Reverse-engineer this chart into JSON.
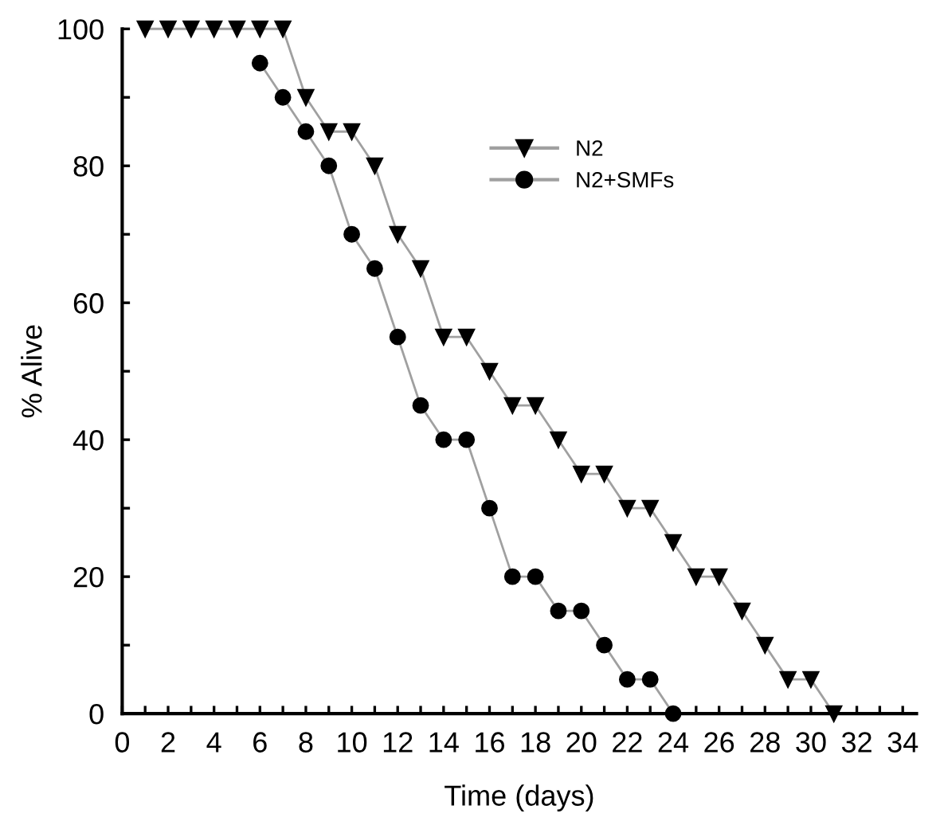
{
  "chart_data": {
    "type": "line",
    "xlabel": "Time (days)",
    "ylabel": "% Alive",
    "xlim": [
      0,
      34.6
    ],
    "ylim": [
      0,
      100
    ],
    "xticks": [
      0,
      {
        "value": 1,
        "label": null
      },
      2,
      {
        "value": 3,
        "label": null
      },
      4,
      {
        "value": 5,
        "label": null
      },
      6,
      {
        "value": 7,
        "label": null
      },
      8,
      {
        "value": 9,
        "label": null
      },
      10,
      {
        "value": 11,
        "label": null
      },
      12,
      {
        "value": 13,
        "label": null
      },
      14,
      {
        "value": 15,
        "label": null
      },
      16,
      {
        "value": 17,
        "label": null
      },
      18,
      {
        "value": 19,
        "label": null
      },
      20,
      {
        "value": 21,
        "label": null
      },
      22,
      {
        "value": 23,
        "label": null
      },
      24,
      {
        "value": 25,
        "label": null
      },
      26,
      {
        "value": 27,
        "label": null
      },
      28,
      {
        "value": 29,
        "label": null
      },
      30,
      {
        "value": 31,
        "label": null
      },
      32,
      {
        "value": 33,
        "label": null
      },
      34
    ],
    "yticks": [
      0,
      {
        "value": 10,
        "label": null
      },
      20,
      {
        "value": 30,
        "label": null
      },
      40,
      {
        "value": 50,
        "label": null
      },
      60,
      {
        "value": 70,
        "label": null
      },
      80,
      {
        "value": 90,
        "label": null
      },
      100
    ],
    "grid": false,
    "legend": "right",
    "series": [
      {
        "name": "N2",
        "color": "#000000",
        "marker": "triangle",
        "x": [
          1,
          2,
          3,
          4,
          5,
          6,
          7,
          8,
          9,
          10,
          11,
          12,
          13,
          14,
          15,
          16,
          17,
          18,
          19,
          20,
          21,
          22,
          23,
          24,
          25,
          26,
          27,
          28,
          29,
          30,
          31
        ],
        "values": [
          100,
          100,
          100,
          100,
          100,
          100,
          100,
          90,
          85,
          85,
          80,
          70,
          65,
          55,
          55,
          50,
          45,
          45,
          40,
          35,
          35,
          30,
          30,
          25,
          20,
          20,
          15,
          10,
          5,
          5,
          0
        ]
      },
      {
        "name": "N2+SMFs",
        "color": "#000000",
        "marker": "circle",
        "x": [
          6,
          7,
          8,
          9,
          10,
          11,
          12,
          13,
          14,
          15,
          16,
          17,
          18,
          19,
          20,
          21,
          22,
          23,
          24
        ],
        "values": [
          95,
          90,
          85,
          80,
          70,
          65,
          55,
          45,
          40,
          40,
          30,
          20,
          20,
          15,
          15,
          10,
          5,
          5,
          0
        ]
      }
    ]
  }
}
